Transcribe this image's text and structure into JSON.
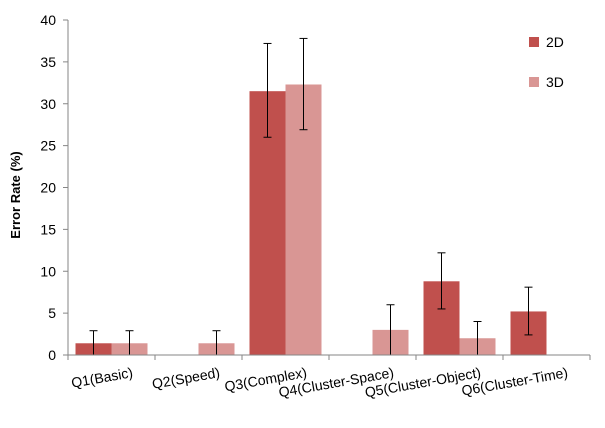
{
  "chart_data": {
    "type": "bar",
    "title": "",
    "xlabel": "",
    "ylabel": "Error Rate (%)",
    "ylim": [
      0,
      40
    ],
    "yticks": [
      0,
      5,
      10,
      15,
      20,
      25,
      30,
      35,
      40
    ],
    "grid": false,
    "legend_position": "top-right",
    "categories": [
      "Q1(Basic)",
      "Q2(Speed)",
      "Q3(Complex)",
      "Q4(Cluster-Space)",
      "Q5(Cluster-Object)",
      "Q6(Cluster-Time)"
    ],
    "series": [
      {
        "name": "2D",
        "color": "#c0504d",
        "values": [
          1.4,
          0,
          31.5,
          0,
          8.8,
          5.2
        ],
        "error_low": [
          0,
          0,
          26.0,
          0,
          5.5,
          2.4
        ],
        "error_high": [
          2.9,
          0,
          37.2,
          0,
          12.2,
          8.1
        ]
      },
      {
        "name": "3D",
        "color": "#d99694",
        "values": [
          1.4,
          1.4,
          32.3,
          3.0,
          2.0,
          0
        ],
        "error_low": [
          0,
          0,
          26.9,
          0,
          0,
          0
        ],
        "error_high": [
          2.9,
          2.9,
          37.8,
          6.0,
          4.0,
          0
        ]
      }
    ]
  }
}
